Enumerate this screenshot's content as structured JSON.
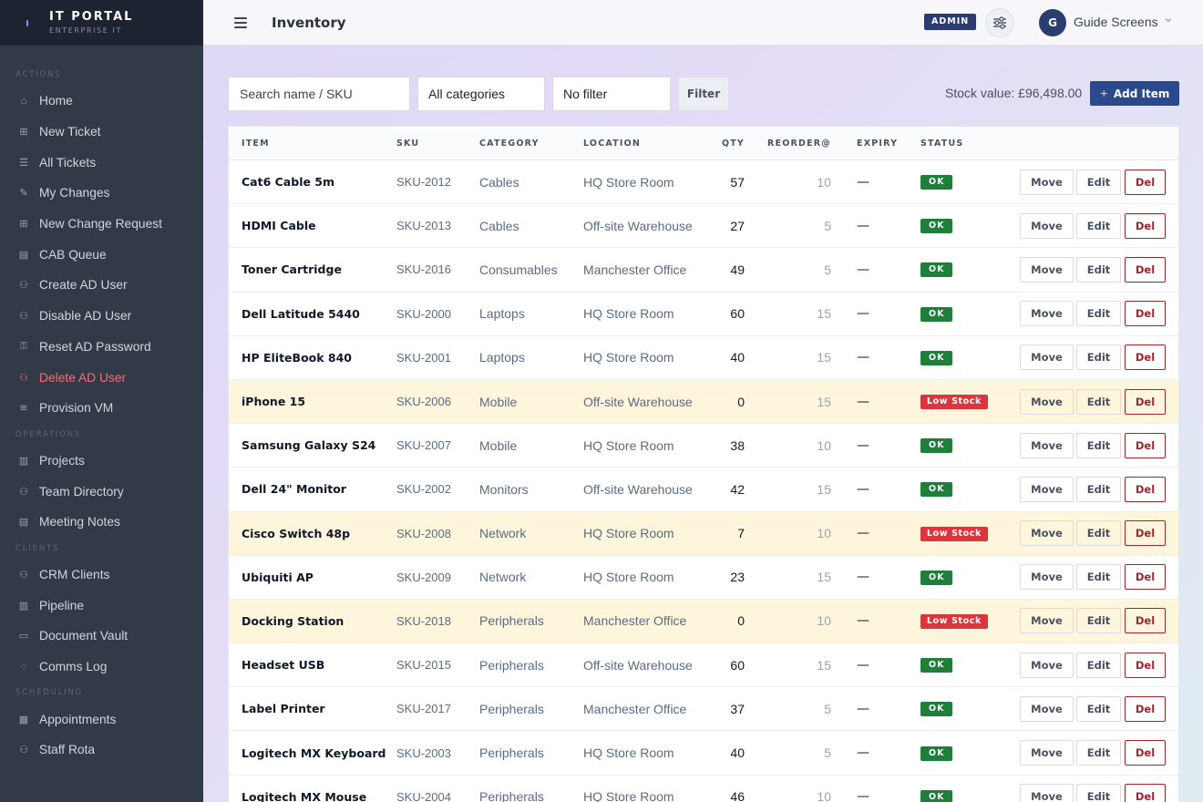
{
  "brand": {
    "title": "IT PORTAL",
    "subtitle": "ENTERPRISE IT"
  },
  "sidebar": {
    "sections": [
      {
        "title": "ACTIONS",
        "items": [
          {
            "label": "Home",
            "icon": "home-icon"
          },
          {
            "label": "New Ticket",
            "icon": "plus-square-icon"
          },
          {
            "label": "All Tickets",
            "icon": "list-icon"
          },
          {
            "label": "My Changes",
            "icon": "edit-icon"
          },
          {
            "label": "New Change Request",
            "icon": "plus-square-icon"
          },
          {
            "label": "CAB Queue",
            "icon": "clipboard-icon"
          },
          {
            "label": "Create AD User",
            "icon": "user-plus-icon"
          },
          {
            "label": "Disable AD User",
            "icon": "user-lock-icon"
          },
          {
            "label": "Reset AD Password",
            "icon": "key-icon"
          },
          {
            "label": "Delete AD User",
            "icon": "user-x-icon"
          },
          {
            "label": "Provision VM",
            "icon": "database-icon"
          }
        ]
      },
      {
        "title": "OPERATIONS",
        "items": [
          {
            "label": "Projects",
            "icon": "kanban-icon"
          },
          {
            "label": "Team Directory",
            "icon": "users-icon"
          },
          {
            "label": "Meeting Notes",
            "icon": "notes-icon"
          }
        ]
      },
      {
        "title": "CLIENTS",
        "items": [
          {
            "label": "CRM Clients",
            "icon": "users-icon"
          },
          {
            "label": "Pipeline",
            "icon": "kanban-icon"
          },
          {
            "label": "Document Vault",
            "icon": "folder-icon"
          },
          {
            "label": "Comms Log",
            "icon": "chat-icon"
          }
        ]
      },
      {
        "title": "SCHEDULING",
        "items": [
          {
            "label": "Appointments",
            "icon": "calendar-icon"
          },
          {
            "label": "Staff Rota",
            "icon": "users-icon"
          }
        ]
      }
    ]
  },
  "header": {
    "title": "Inventory",
    "badge": "ADMIN",
    "user": {
      "initial": "G",
      "name": "Guide Screens"
    }
  },
  "toolbar": {
    "search_placeholder": "Search name / SKU",
    "category_value": "All categories",
    "filter_value": "No filter",
    "filter_button": "Filter",
    "stock_value": "Stock value: £96,498.00",
    "add_button": "Add Item",
    "add_plus": "+"
  },
  "table": {
    "columns": [
      "ITEM",
      "SKU",
      "CATEGORY",
      "LOCATION",
      "QTY",
      "REORDER@",
      "EXPIRY",
      "STATUS"
    ],
    "actions": {
      "move": "Move",
      "edit": "Edit",
      "del": "Del"
    },
    "rows": [
      {
        "item": "Cat6 Cable 5m",
        "sku": "SKU-2012",
        "category": "Cables",
        "location": "HQ Store Room",
        "qty": "57",
        "reorder": "10",
        "expiry": "—",
        "status": "OK"
      },
      {
        "item": "HDMI Cable",
        "sku": "SKU-2013",
        "category": "Cables",
        "location": "Off-site Warehouse",
        "qty": "27",
        "reorder": "5",
        "expiry": "—",
        "status": "OK"
      },
      {
        "item": "Toner Cartridge",
        "sku": "SKU-2016",
        "category": "Consumables",
        "location": "Manchester Office",
        "qty": "49",
        "reorder": "5",
        "expiry": "—",
        "status": "OK"
      },
      {
        "item": "Dell Latitude 5440",
        "sku": "SKU-2000",
        "category": "Laptops",
        "location": "HQ Store Room",
        "qty": "60",
        "reorder": "15",
        "expiry": "—",
        "status": "OK"
      },
      {
        "item": "HP EliteBook 840",
        "sku": "SKU-2001",
        "category": "Laptops",
        "location": "HQ Store Room",
        "qty": "40",
        "reorder": "15",
        "expiry": "—",
        "status": "OK"
      },
      {
        "item": "iPhone 15",
        "sku": "SKU-2006",
        "category": "Mobile",
        "location": "Off-site Warehouse",
        "qty": "0",
        "reorder": "15",
        "expiry": "—",
        "status": "Low Stock"
      },
      {
        "item": "Samsung Galaxy S24",
        "sku": "SKU-2007",
        "category": "Mobile",
        "location": "HQ Store Room",
        "qty": "38",
        "reorder": "10",
        "expiry": "—",
        "status": "OK"
      },
      {
        "item": "Dell 24\" Monitor",
        "sku": "SKU-2002",
        "category": "Monitors",
        "location": "Off-site Warehouse",
        "qty": "42",
        "reorder": "15",
        "expiry": "—",
        "status": "OK"
      },
      {
        "item": "Cisco Switch 48p",
        "sku": "SKU-2008",
        "category": "Network",
        "location": "HQ Store Room",
        "qty": "7",
        "reorder": "10",
        "expiry": "—",
        "status": "Low Stock"
      },
      {
        "item": "Ubiquiti AP",
        "sku": "SKU-2009",
        "category": "Network",
        "location": "HQ Store Room",
        "qty": "23",
        "reorder": "15",
        "expiry": "—",
        "status": "OK"
      },
      {
        "item": "Docking Station",
        "sku": "SKU-2018",
        "category": "Peripherals",
        "location": "Manchester Office",
        "qty": "0",
        "reorder": "10",
        "expiry": "—",
        "status": "Low Stock"
      },
      {
        "item": "Headset USB",
        "sku": "SKU-2015",
        "category": "Peripherals",
        "location": "Off-site Warehouse",
        "qty": "60",
        "reorder": "15",
        "expiry": "—",
        "status": "OK"
      },
      {
        "item": "Label Printer",
        "sku": "SKU-2017",
        "category": "Peripherals",
        "location": "Manchester Office",
        "qty": "37",
        "reorder": "5",
        "expiry": "—",
        "status": "OK"
      },
      {
        "item": "Logitech MX Keyboard",
        "sku": "SKU-2003",
        "category": "Peripherals",
        "location": "HQ Store Room",
        "qty": "40",
        "reorder": "5",
        "expiry": "—",
        "status": "OK"
      },
      {
        "item": "Logitech MX Mouse",
        "sku": "SKU-2004",
        "category": "Peripherals",
        "location": "HQ Store Room",
        "qty": "46",
        "reorder": "10",
        "expiry": "—",
        "status": "OK"
      }
    ]
  }
}
